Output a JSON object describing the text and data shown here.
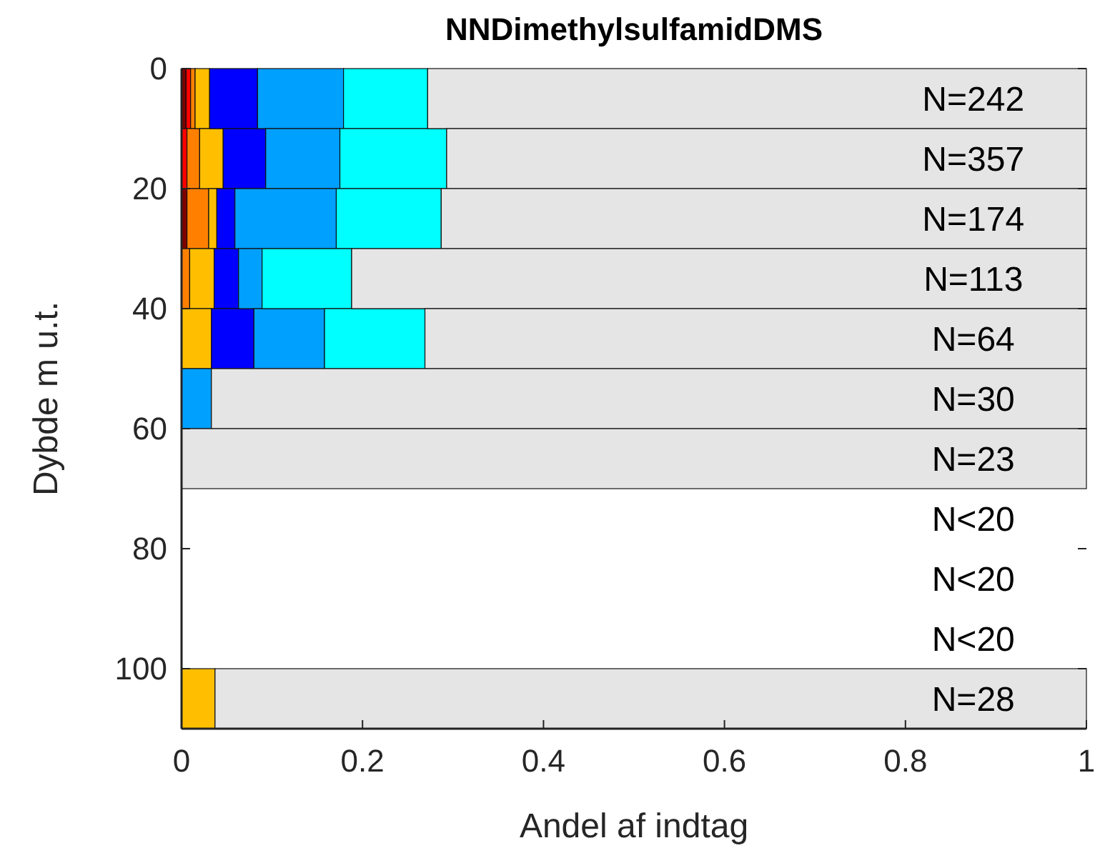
{
  "chart_data": {
    "type": "bar",
    "orientation": "horizontal",
    "stacked": true,
    "title": "NNDimethylsulfamidDMS",
    "xlabel": "Andel af indtag",
    "ylabel": "Dybde m u.t.",
    "x": [
      5,
      15,
      25,
      35,
      45,
      55,
      65,
      75,
      85,
      95,
      105
    ],
    "series": [
      {
        "color": "#800000",
        "values": [
          0.005,
          0,
          0.006,
          0,
          0,
          0,
          0,
          null,
          null,
          null,
          0
        ]
      },
      {
        "color": "#ff0000",
        "values": [
          0.005,
          0.006,
          0,
          0,
          0,
          0,
          0,
          null,
          null,
          null,
          0
        ]
      },
      {
        "color": "#ff8000",
        "values": [
          0.005,
          0.014,
          0.024,
          0.009,
          0,
          0,
          0,
          null,
          null,
          null,
          0
        ]
      },
      {
        "color": "#ffbf00",
        "values": [
          0.016,
          0.026,
          0.009,
          0.027,
          0.033,
          0,
          0,
          null,
          null,
          null,
          0.037
        ]
      },
      {
        "color": "#0000ff",
        "values": [
          0.053,
          0.047,
          0.02,
          0.027,
          0.047,
          0,
          0,
          null,
          null,
          null,
          0
        ]
      },
      {
        "color": "#00a0ff",
        "values": [
          0.095,
          0.082,
          0.112,
          0.026,
          0.078,
          0.033,
          0,
          null,
          null,
          null,
          0
        ]
      },
      {
        "color": "#00ffff",
        "values": [
          0.093,
          0.118,
          0.116,
          0.099,
          0.111,
          0,
          0,
          null,
          null,
          null,
          0
        ]
      },
      {
        "color": "#e5e5e5",
        "values": [
          0.728,
          0.707,
          0.713,
          0.812,
          0.731,
          0.967,
          1,
          null,
          null,
          null,
          0.963
        ]
      }
    ],
    "xlim": [
      0,
      1
    ],
    "xticks": [
      0,
      0.2,
      0.4,
      0.6,
      0.8,
      1
    ],
    "ylim": [
      110,
      0
    ],
    "yticks": [
      0,
      20,
      40,
      60,
      80,
      100
    ],
    "grid": false,
    "annotations": [
      "N=242",
      "N=357",
      "N=174",
      "N=113",
      "N=64",
      "N=30",
      "N=23",
      "N<20",
      "N<20",
      "N<20",
      "N=28"
    ]
  }
}
